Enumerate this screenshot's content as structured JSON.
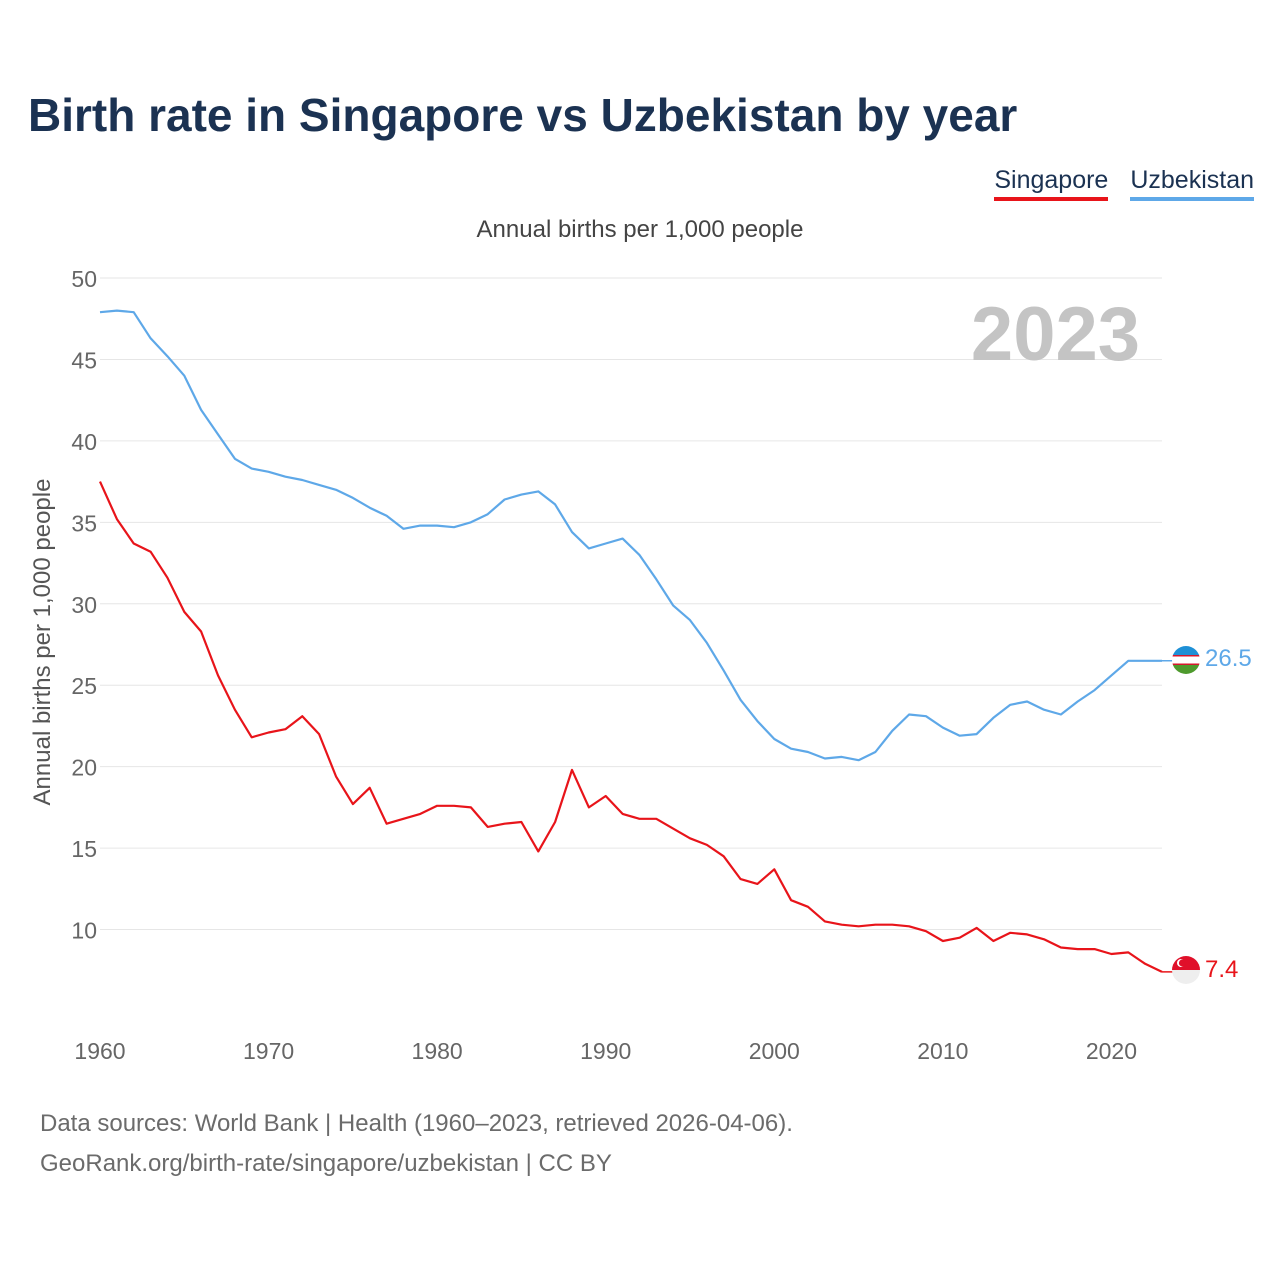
{
  "title": "Birth rate in Singapore vs Uzbekistan by year",
  "subtitle": "Annual births per 1,000 people",
  "footer": {
    "line1": "Data sources: World Bank | Health (1960–2023, retrieved 2026-04-06).",
    "line2": "GeoRank.org/birth-rate/singapore/uzbekistan | CC BY"
  },
  "chart_data": {
    "type": "line",
    "title": "Birth rate in Singapore vs Uzbekistan by year",
    "subtitle": "Annual births per 1,000 people",
    "xlabel": "",
    "ylabel": "Annual births per 1,000 people",
    "year_label": "2023",
    "xlim": [
      1960,
      2023
    ],
    "ylim": [
      5,
      50
    ],
    "yticks": [
      10,
      15,
      20,
      25,
      30,
      35,
      40,
      45,
      50
    ],
    "xticks": [
      1960,
      1970,
      1980,
      1990,
      2000,
      2010,
      2020
    ],
    "grid": true,
    "legend_position": "top-right",
    "x": [
      1960,
      1961,
      1962,
      1963,
      1964,
      1965,
      1966,
      1967,
      1968,
      1969,
      1970,
      1971,
      1972,
      1973,
      1974,
      1975,
      1976,
      1977,
      1978,
      1979,
      1980,
      1981,
      1982,
      1983,
      1984,
      1985,
      1986,
      1987,
      1988,
      1989,
      1990,
      1991,
      1992,
      1993,
      1994,
      1995,
      1996,
      1997,
      1998,
      1999,
      2000,
      2001,
      2002,
      2003,
      2004,
      2005,
      2006,
      2007,
      2008,
      2009,
      2010,
      2011,
      2012,
      2013,
      2014,
      2015,
      2016,
      2017,
      2018,
      2019,
      2020,
      2021,
      2022,
      2023
    ],
    "series": [
      {
        "name": "Singapore",
        "color": "#e8141a",
        "end_label": "7.4",
        "values": [
          37.5,
          35.2,
          33.7,
          33.2,
          31.6,
          29.5,
          28.3,
          25.6,
          23.5,
          21.8,
          22.1,
          22.3,
          23.1,
          22.0,
          19.4,
          17.7,
          18.7,
          16.5,
          16.8,
          17.1,
          17.6,
          17.6,
          17.5,
          16.3,
          16.5,
          16.6,
          14.8,
          16.6,
          19.8,
          17.5,
          18.2,
          17.1,
          16.8,
          16.8,
          16.2,
          15.6,
          15.2,
          14.5,
          13.1,
          12.8,
          13.7,
          11.8,
          11.4,
          10.5,
          10.3,
          10.2,
          10.3,
          10.3,
          10.2,
          9.9,
          9.3,
          9.5,
          10.1,
          9.3,
          9.8,
          9.7,
          9.4,
          8.9,
          8.8,
          8.8,
          8.5,
          8.6,
          7.9,
          7.4
        ]
      },
      {
        "name": "Uzbekistan",
        "color": "#5ea8e8",
        "end_label": "26.5",
        "values": [
          47.9,
          48.0,
          47.9,
          46.3,
          45.2,
          44.0,
          41.9,
          40.4,
          38.9,
          38.3,
          38.1,
          37.8,
          37.6,
          37.3,
          37.0,
          36.5,
          35.9,
          35.4,
          34.6,
          34.8,
          34.8,
          34.7,
          35.0,
          35.5,
          36.4,
          36.7,
          36.9,
          36.1,
          34.4,
          33.4,
          33.7,
          34.0,
          33.0,
          31.5,
          29.9,
          29.0,
          27.6,
          25.9,
          24.1,
          22.8,
          21.7,
          21.1,
          20.9,
          20.5,
          20.6,
          20.4,
          20.9,
          22.2,
          23.2,
          23.1,
          22.4,
          21.9,
          22.0,
          23.0,
          23.8,
          24.0,
          23.5,
          23.2,
          24.0,
          24.7,
          25.6,
          26.5,
          26.5,
          26.5
        ]
      }
    ]
  }
}
